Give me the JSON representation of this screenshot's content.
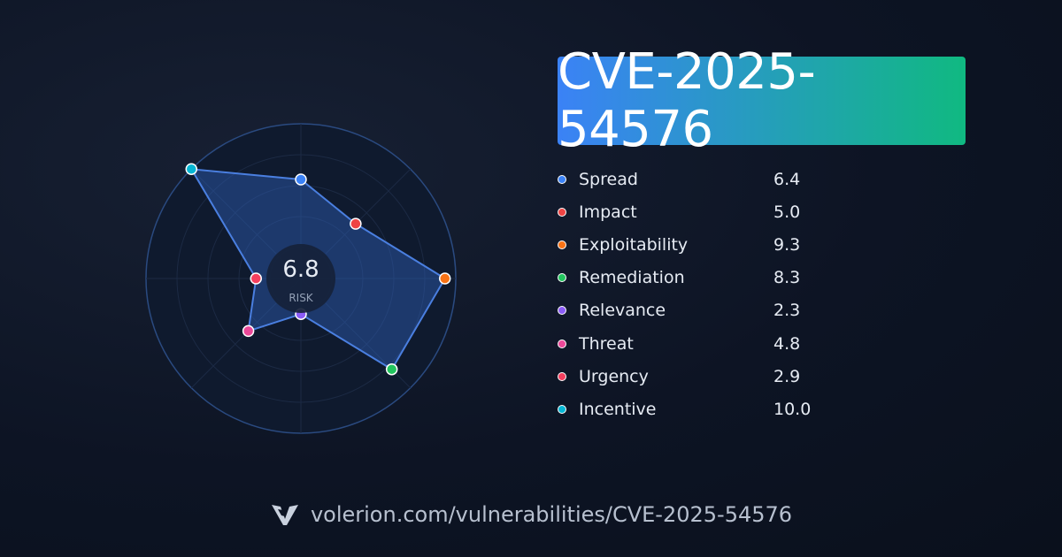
{
  "title": "CVE-2025-54576",
  "center_score": {
    "value": "6.8",
    "label": "RISK"
  },
  "footer": {
    "url": "volerion.com/vulnerabilities/CVE-2025-54576",
    "logo_icon": "volerion-logo-icon"
  },
  "colors": {
    "fill": "#2f5fb8",
    "stroke": "#4a7fe0",
    "ring": "#2a4a80",
    "gradient_start": "#3b82f6",
    "gradient_end": "#10b981"
  },
  "chart_data": {
    "type": "radar",
    "title": "",
    "range": [
      0,
      10
    ],
    "series": [
      {
        "values": [
          6.4,
          5.0,
          9.3,
          8.3,
          2.3,
          4.8,
          2.9,
          10.0
        ]
      }
    ],
    "categories": [
      "Spread",
      "Impact",
      "Exploitability",
      "Remediation",
      "Relevance",
      "Threat",
      "Urgency",
      "Incentive"
    ],
    "legend": [
      {
        "name": "Spread",
        "value": "6.4",
        "color": "#3b82f6"
      },
      {
        "name": "Impact",
        "value": "5.0",
        "color": "#ef4444"
      },
      {
        "name": "Exploitability",
        "value": "9.3",
        "color": "#f97316"
      },
      {
        "name": "Remediation",
        "value": "8.3",
        "color": "#22c55e"
      },
      {
        "name": "Relevance",
        "value": "2.3",
        "color": "#8b5cf6"
      },
      {
        "name": "Threat",
        "value": "4.8",
        "color": "#ec4899"
      },
      {
        "name": "Urgency",
        "value": "2.9",
        "color": "#f43f5e"
      },
      {
        "name": "Incentive",
        "value": "10.0",
        "color": "#06b6d4"
      }
    ],
    "legend_position": "right"
  }
}
